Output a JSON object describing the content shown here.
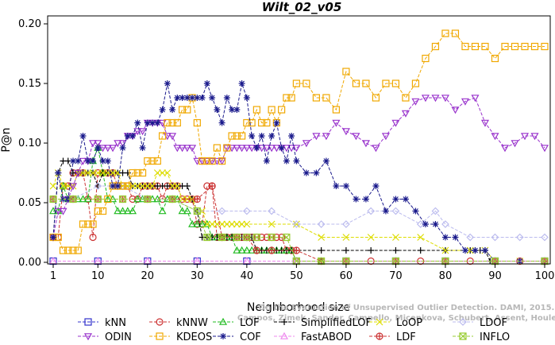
{
  "chart_data": {
    "type": "line",
    "title": "Wilt_02_v05",
    "xlabel": "Neighborhood size",
    "ylabel": "P@n",
    "xlim": [
      1,
      100
    ],
    "ylim": [
      0,
      0.2
    ],
    "xticks": [
      1,
      10,
      20,
      30,
      40,
      50,
      60,
      70,
      80,
      90,
      100
    ],
    "yticks": [
      0.0,
      0.05,
      0.1,
      0.15,
      0.2
    ],
    "ytick_labels": [
      "0.00",
      "0.05",
      "0.10",
      "0.15",
      "0.20"
    ],
    "grid": false,
    "legend_position": "bottom",
    "watermark": [
      "Campos, Zimek, Sander, Campello, Micenkova, Schubert, Assent, Houle",
      "On the Evaluation of Unsupervised Outlier Detection. DAMI, 2015."
    ],
    "series": [
      {
        "name": "kNN",
        "color": "#3333cc",
        "marker": "square",
        "x": [
          1,
          10,
          20,
          30,
          40,
          50,
          60,
          70,
          80,
          90,
          100
        ],
        "values": [
          0.001,
          0.001,
          0.001,
          0.001,
          0.001,
          0.001,
          0.001,
          0.001,
          0.001,
          0.001,
          0.001
        ]
      },
      {
        "name": "kNNW",
        "color": "#cc3333",
        "marker": "circle",
        "x": [
          1,
          2,
          3,
          4,
          5,
          6,
          7,
          8,
          9,
          10,
          11,
          12,
          13,
          14,
          15,
          16,
          17,
          18,
          19,
          20,
          21,
          22,
          23,
          24,
          25,
          26,
          27,
          28,
          29,
          30,
          31,
          32,
          33,
          34,
          35,
          36,
          37,
          38,
          39,
          40,
          41,
          42,
          43,
          44,
          45,
          46,
          47,
          48,
          49,
          50,
          55,
          60,
          65,
          70,
          75,
          80,
          85,
          90,
          95,
          100
        ],
        "values": [
          0.021,
          0.021,
          0.064,
          0.064,
          0.075,
          0.075,
          0.075,
          0.053,
          0.021,
          0.075,
          0.075,
          0.075,
          0.075,
          0.064,
          0.064,
          0.064,
          0.053,
          0.053,
          0.064,
          0.064,
          0.064,
          0.064,
          0.053,
          0.064,
          0.064,
          0.064,
          0.053,
          0.053,
          0.053,
          0.032,
          0.032,
          0.064,
          0.064,
          0.021,
          0.021,
          0.021,
          0.021,
          0.021,
          0.021,
          0.021,
          0.021,
          0.021,
          0.021,
          0.021,
          0.021,
          0.021,
          0.021,
          0.01,
          0.01,
          0.001,
          0.001,
          0.001,
          0.001,
          0.001,
          0.001,
          0.001,
          0.001,
          0.001,
          0.001,
          0.001
        ]
      },
      {
        "name": "LOF",
        "color": "#22bb22",
        "marker": "triangle-up",
        "x": [
          1,
          2,
          3,
          4,
          5,
          6,
          7,
          8,
          9,
          10,
          11,
          12,
          13,
          14,
          15,
          16,
          17,
          18,
          19,
          20,
          21,
          22,
          23,
          24,
          25,
          26,
          27,
          28,
          29,
          30,
          31,
          32,
          33,
          34,
          35,
          36,
          37,
          38,
          39,
          40,
          41,
          42,
          43,
          44,
          45,
          46,
          47,
          48,
          49,
          50,
          55,
          60,
          70,
          80,
          90,
          100
        ],
        "values": [
          0.043,
          0.043,
          0.064,
          0.053,
          0.053,
          0.053,
          0.053,
          0.053,
          0.085,
          0.096,
          0.075,
          0.053,
          0.053,
          0.043,
          0.043,
          0.043,
          0.043,
          0.053,
          0.053,
          0.053,
          0.053,
          0.053,
          0.043,
          0.053,
          0.053,
          0.053,
          0.043,
          0.043,
          0.032,
          0.032,
          0.032,
          0.032,
          0.021,
          0.021,
          0.021,
          0.021,
          0.021,
          0.01,
          0.01,
          0.01,
          0.01,
          0.01,
          0.01,
          0.01,
          0.01,
          0.01,
          0.01,
          0.01,
          0.01,
          0.001,
          0.001,
          0.001,
          0.001,
          0.001,
          0.001,
          0.001
        ]
      },
      {
        "name": "SimplifiedLOF",
        "color": "#000000",
        "marker": "plus",
        "x": [
          1,
          2,
          3,
          4,
          5,
          6,
          7,
          8,
          9,
          10,
          11,
          12,
          13,
          14,
          15,
          16,
          17,
          18,
          19,
          20,
          21,
          22,
          23,
          24,
          25,
          26,
          27,
          28,
          29,
          30,
          31,
          32,
          33,
          34,
          35,
          36,
          37,
          38,
          39,
          40,
          41,
          42,
          43,
          44,
          45,
          46,
          47,
          48,
          49,
          50,
          55,
          60,
          65,
          70,
          75,
          80,
          85,
          86,
          87,
          88,
          89,
          90,
          95,
          100
        ],
        "values": [
          0.021,
          0.075,
          0.085,
          0.085,
          0.075,
          0.075,
          0.075,
          0.075,
          0.075,
          0.064,
          0.075,
          0.075,
          0.075,
          0.075,
          0.075,
          0.075,
          0.064,
          0.064,
          0.064,
          0.064,
          0.064,
          0.064,
          0.064,
          0.064,
          0.064,
          0.064,
          0.064,
          0.064,
          0.053,
          0.043,
          0.021,
          0.021,
          0.021,
          0.021,
          0.021,
          0.021,
          0.021,
          0.021,
          0.021,
          0.021,
          0.021,
          0.01,
          0.01,
          0.01,
          0.01,
          0.01,
          0.01,
          0.01,
          0.01,
          0.01,
          0.01,
          0.01,
          0.01,
          0.01,
          0.01,
          0.01,
          0.01,
          0.01,
          0.01,
          0.01,
          0.001,
          0.001,
          0.001,
          0.001
        ]
      },
      {
        "name": "LoOP",
        "color": "#dddd00",
        "marker": "x",
        "x": [
          1,
          2,
          3,
          4,
          5,
          6,
          7,
          8,
          9,
          10,
          11,
          12,
          13,
          14,
          15,
          16,
          17,
          18,
          19,
          20,
          21,
          22,
          23,
          24,
          25,
          26,
          27,
          28,
          29,
          30,
          31,
          32,
          33,
          34,
          35,
          36,
          37,
          38,
          39,
          40,
          45,
          50,
          55,
          60,
          65,
          70,
          75,
          80,
          85,
          88,
          90,
          95,
          100
        ],
        "values": [
          0.064,
          0.075,
          0.064,
          0.064,
          0.064,
          0.075,
          0.075,
          0.075,
          0.075,
          0.075,
          0.075,
          0.075,
          0.075,
          0.075,
          0.064,
          0.064,
          0.064,
          0.064,
          0.064,
          0.064,
          0.064,
          0.075,
          0.075,
          0.075,
          0.064,
          0.064,
          0.053,
          0.053,
          0.053,
          0.043,
          0.043,
          0.032,
          0.032,
          0.032,
          0.032,
          0.032,
          0.032,
          0.032,
          0.032,
          0.032,
          0.032,
          0.032,
          0.021,
          0.021,
          0.021,
          0.021,
          0.021,
          0.01,
          0.01,
          0.01,
          0.001,
          0.001,
          0.001
        ]
      },
      {
        "name": "LDOF",
        "color": "#bbbbee",
        "marker": "diamond",
        "x": [
          1,
          5,
          10,
          15,
          20,
          25,
          30,
          35,
          40,
          45,
          50,
          55,
          60,
          65,
          70,
          75,
          78,
          80,
          85,
          90,
          95,
          100
        ],
        "values": [
          0.053,
          0.053,
          0.064,
          0.064,
          0.053,
          0.053,
          0.043,
          0.043,
          0.043,
          0.043,
          0.032,
          0.032,
          0.032,
          0.043,
          0.043,
          0.032,
          0.043,
          0.032,
          0.021,
          0.021,
          0.021,
          0.021
        ]
      },
      {
        "name": "ODIN",
        "color": "#9933cc",
        "marker": "triangle-down",
        "x": [
          1,
          2,
          3,
          4,
          5,
          6,
          7,
          8,
          9,
          10,
          11,
          12,
          13,
          14,
          15,
          16,
          17,
          18,
          19,
          20,
          21,
          22,
          23,
          24,
          25,
          26,
          27,
          28,
          29,
          30,
          31,
          32,
          33,
          34,
          35,
          36,
          37,
          38,
          39,
          40,
          41,
          42,
          43,
          44,
          45,
          46,
          47,
          48,
          49,
          50,
          52,
          54,
          56,
          58,
          60,
          62,
          64,
          66,
          68,
          70,
          72,
          74,
          76,
          78,
          80,
          82,
          84,
          86,
          88,
          90,
          92,
          94,
          96,
          98,
          100
        ],
        "values": [
          0.021,
          0.043,
          0.043,
          0.053,
          0.064,
          0.075,
          0.085,
          0.085,
          0.1,
          0.1,
          0.096,
          0.096,
          0.096,
          0.1,
          0.1,
          0.106,
          0.106,
          0.11,
          0.11,
          0.117,
          0.117,
          0.117,
          0.117,
          0.106,
          0.106,
          0.096,
          0.096,
          0.096,
          0.096,
          0.085,
          0.085,
          0.085,
          0.085,
          0.085,
          0.085,
          0.096,
          0.096,
          0.096,
          0.096,
          0.096,
          0.096,
          0.096,
          0.096,
          0.096,
          0.096,
          0.096,
          0.096,
          0.096,
          0.096,
          0.096,
          0.1,
          0.106,
          0.106,
          0.117,
          0.11,
          0.106,
          0.1,
          0.096,
          0.106,
          0.117,
          0.125,
          0.135,
          0.138,
          0.138,
          0.138,
          0.128,
          0.135,
          0.138,
          0.117,
          0.106,
          0.096,
          0.1,
          0.106,
          0.106,
          0.096
        ]
      },
      {
        "name": "KDEOS",
        "color": "#f0a800",
        "marker": "square",
        "x": [
          1,
          2,
          3,
          4,
          5,
          6,
          7,
          8,
          9,
          10,
          11,
          12,
          13,
          14,
          15,
          16,
          17,
          18,
          19,
          20,
          21,
          22,
          23,
          24,
          25,
          26,
          27,
          28,
          29,
          30,
          31,
          32,
          33,
          34,
          35,
          36,
          37,
          38,
          39,
          40,
          41,
          42,
          43,
          44,
          45,
          46,
          47,
          48,
          49,
          50,
          52,
          54,
          56,
          58,
          60,
          62,
          64,
          66,
          68,
          70,
          72,
          74,
          76,
          78,
          80,
          82,
          84,
          86,
          88,
          90,
          92,
          94,
          96,
          98,
          100
        ],
        "values": [
          0.021,
          0.021,
          0.01,
          0.01,
          0.01,
          0.01,
          0.032,
          0.032,
          0.032,
          0.043,
          0.043,
          0.053,
          0.064,
          0.064,
          0.064,
          0.064,
          0.075,
          0.075,
          0.075,
          0.085,
          0.085,
          0.085,
          0.106,
          0.117,
          0.117,
          0.117,
          0.128,
          0.128,
          0.138,
          0.117,
          0.085,
          0.085,
          0.085,
          0.096,
          0.085,
          0.096,
          0.106,
          0.106,
          0.106,
          0.117,
          0.117,
          0.128,
          0.117,
          0.117,
          0.128,
          0.117,
          0.128,
          0.138,
          0.138,
          0.15,
          0.15,
          0.138,
          0.138,
          0.128,
          0.16,
          0.15,
          0.15,
          0.138,
          0.15,
          0.15,
          0.138,
          0.15,
          0.171,
          0.181,
          0.192,
          0.192,
          0.181,
          0.181,
          0.181,
          0.171,
          0.181,
          0.181,
          0.181,
          0.181,
          0.181
        ]
      },
      {
        "name": "COF",
        "color": "#1a1a8c",
        "marker": "star",
        "x": [
          1,
          2,
          3,
          4,
          5,
          6,
          7,
          8,
          9,
          10,
          11,
          12,
          13,
          14,
          15,
          16,
          17,
          18,
          19,
          20,
          21,
          22,
          23,
          24,
          25,
          26,
          27,
          28,
          29,
          30,
          31,
          32,
          33,
          34,
          35,
          36,
          37,
          38,
          39,
          40,
          41,
          42,
          43,
          44,
          45,
          46,
          47,
          48,
          49,
          50,
          52,
          54,
          56,
          58,
          60,
          62,
          64,
          66,
          68,
          70,
          72,
          74,
          76,
          78,
          80,
          82,
          84,
          86,
          88,
          90,
          95,
          100
        ],
        "values": [
          0.021,
          0.075,
          0.053,
          0.053,
          0.085,
          0.085,
          0.106,
          0.085,
          0.085,
          0.096,
          0.085,
          0.085,
          0.064,
          0.064,
          0.096,
          0.106,
          0.106,
          0.117,
          0.096,
          0.117,
          0.117,
          0.117,
          0.128,
          0.15,
          0.128,
          0.138,
          0.138,
          0.138,
          0.138,
          0.138,
          0.138,
          0.15,
          0.138,
          0.128,
          0.117,
          0.138,
          0.128,
          0.128,
          0.15,
          0.138,
          0.106,
          0.096,
          0.106,
          0.085,
          0.106,
          0.117,
          0.096,
          0.085,
          0.106,
          0.085,
          0.075,
          0.075,
          0.085,
          0.064,
          0.064,
          0.053,
          0.053,
          0.064,
          0.043,
          0.053,
          0.053,
          0.043,
          0.032,
          0.032,
          0.021,
          0.021,
          0.01,
          0.01,
          0.01,
          0.001,
          0.001,
          0.001
        ]
      },
      {
        "name": "FastABOD",
        "color": "#ee88ee",
        "marker": "triangle-up",
        "x": [
          1,
          10,
          20,
          30,
          40,
          50,
          60,
          70,
          80,
          90,
          100
        ],
        "values": [
          0.001,
          0.001,
          0.001,
          0.001,
          0.001,
          0.001,
          0.001,
          0.001,
          0.001,
          0.001,
          0.001
        ]
      },
      {
        "name": "LDF",
        "color": "#cc3333",
        "marker": "circle-plus",
        "x": [
          1,
          5,
          10,
          15,
          20,
          25,
          30,
          33,
          35,
          38,
          40,
          42,
          45,
          50,
          55,
          60,
          70,
          80,
          90,
          100
        ],
        "values": [
          0.053,
          0.053,
          0.053,
          0.053,
          0.053,
          0.053,
          0.053,
          0.064,
          0.021,
          0.021,
          0.021,
          0.01,
          0.01,
          0.01,
          0.001,
          0.001,
          0.001,
          0.001,
          0.001,
          0.001
        ]
      },
      {
        "name": "INFLO",
        "color": "#99cc33",
        "marker": "square-x",
        "x": [
          1,
          5,
          10,
          15,
          20,
          25,
          30,
          32,
          35,
          38,
          40,
          42,
          45,
          48,
          50,
          55,
          60,
          70,
          80,
          90,
          100
        ],
        "values": [
          0.053,
          0.053,
          0.053,
          0.053,
          0.053,
          0.053,
          0.043,
          0.021,
          0.021,
          0.021,
          0.021,
          0.021,
          0.021,
          0.021,
          0.001,
          0.001,
          0.001,
          0.001,
          0.001,
          0.001,
          0.001
        ]
      }
    ]
  }
}
